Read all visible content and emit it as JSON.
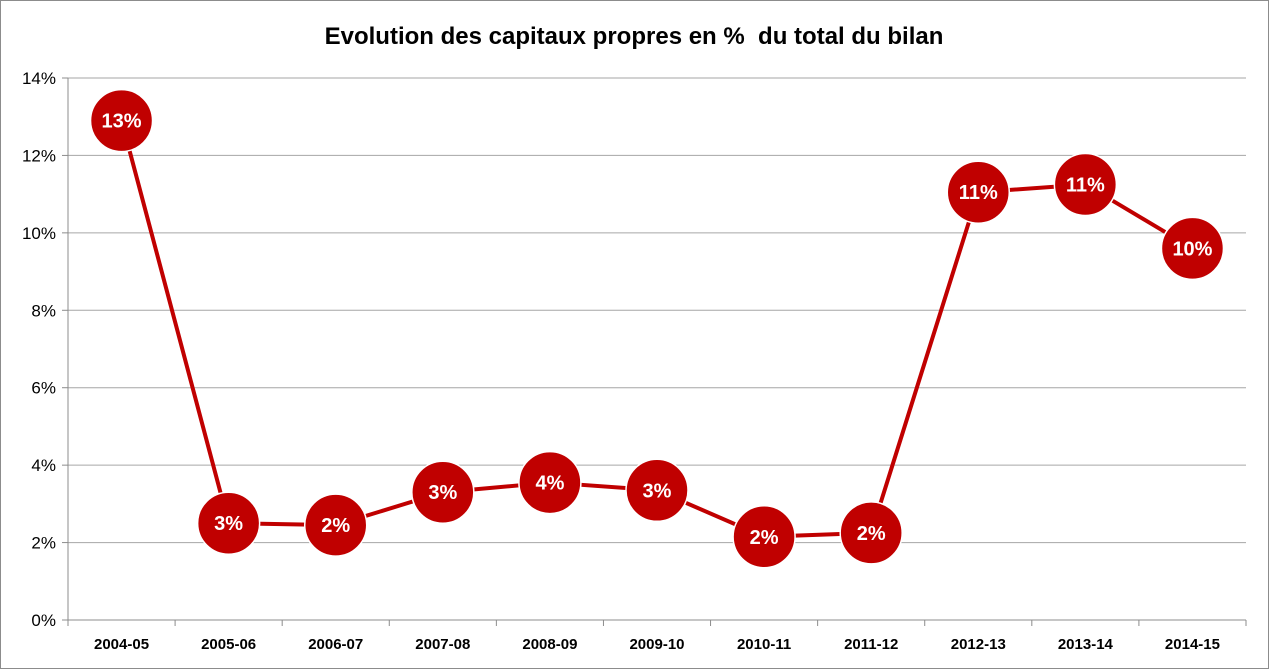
{
  "chart_data": {
    "type": "line",
    "title": "Evolution des capitaux propres en %  du total du bilan",
    "xlabel": "",
    "ylabel": "",
    "categories": [
      "2004-05",
      "2005-06",
      "2006-07",
      "2007-08",
      "2008-09",
      "2009-10",
      "2010-11",
      "2011-12",
      "2012-13",
      "2013-14",
      "2014-15"
    ],
    "series": [
      {
        "values": [
          12.9,
          2.5,
          2.45,
          3.3,
          3.55,
          3.35,
          2.15,
          2.25,
          11.05,
          11.25,
          9.6
        ],
        "data_labels": [
          "13%",
          "3%",
          "2%",
          "3%",
          "4%",
          "3%",
          "2%",
          "2%",
          "11%",
          "11%",
          "10%"
        ],
        "color": "#c00000"
      }
    ],
    "ylim": [
      0,
      14
    ],
    "yticks": [
      0,
      2,
      4,
      6,
      8,
      10,
      12,
      14
    ],
    "ytick_labels": [
      "0%",
      "2%",
      "4%",
      "6%",
      "8%",
      "10%",
      "12%",
      "14%"
    ],
    "grid": true,
    "legend": "none",
    "colors": {
      "line": "#c00000",
      "marker": "#c00000",
      "marker_border": "#ffffff",
      "label_text": "#ffffff",
      "gridline": "#a6a6a6",
      "axis": "#8c8c8c"
    }
  }
}
